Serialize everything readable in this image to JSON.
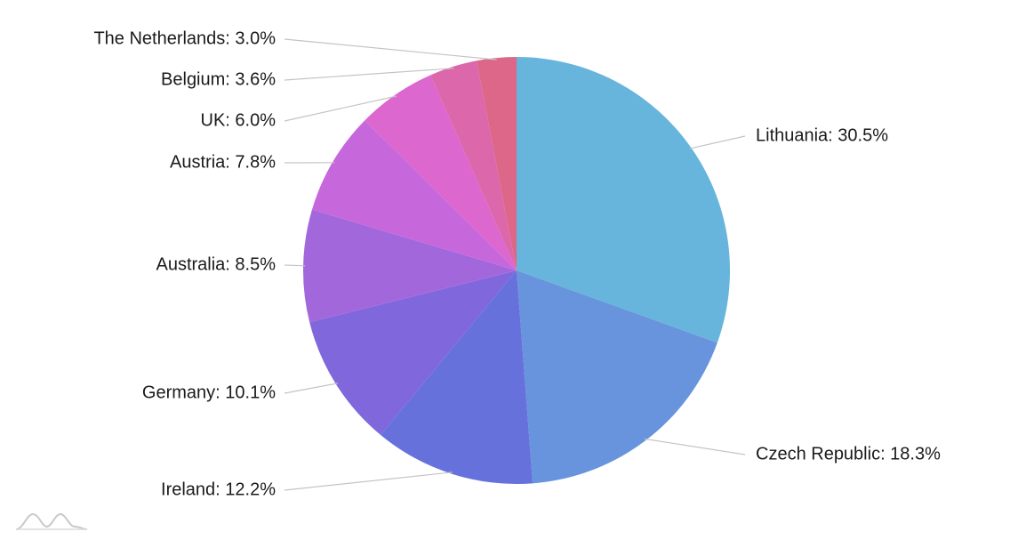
{
  "chart_data": {
    "type": "pie",
    "title": "",
    "start_angle_deg": 0,
    "direction": "clockwise",
    "label_format": "{category}: {value}%",
    "slices": [
      {
        "category": "Lithuania",
        "value": 30.5,
        "label": "Lithuania: 30.5%",
        "color": "#67b5dc"
      },
      {
        "category": "Czech Republic",
        "value": 18.3,
        "label": "Czech Republic: 18.3%",
        "color": "#6894dd"
      },
      {
        "category": "Ireland",
        "value": 12.2,
        "label": "Ireland: 12.2%",
        "color": "#6771dc"
      },
      {
        "category": "Germany",
        "value": 10.1,
        "label": "Germany: 10.1%",
        "color": "#8067dc"
      },
      {
        "category": "Australia",
        "value": 8.5,
        "label": "Australia: 8.5%",
        "color": "#a367dc"
      },
      {
        "category": "Austria",
        "value": 7.8,
        "label": "Austria: 7.8%",
        "color": "#c767dc"
      },
      {
        "category": "UK",
        "value": 6.0,
        "label": "UK: 6.0%",
        "color": "#dc67ce"
      },
      {
        "category": "Belgium",
        "value": 3.6,
        "label": "Belgium: 3.6%",
        "color": "#dc67ab"
      },
      {
        "category": "The Netherlands",
        "value": 3.0,
        "label": "The Netherlands: 3.0%",
        "color": "#dc6788"
      }
    ],
    "legend": "none"
  },
  "branding": {
    "icon": "chart-library-logo-icon"
  }
}
